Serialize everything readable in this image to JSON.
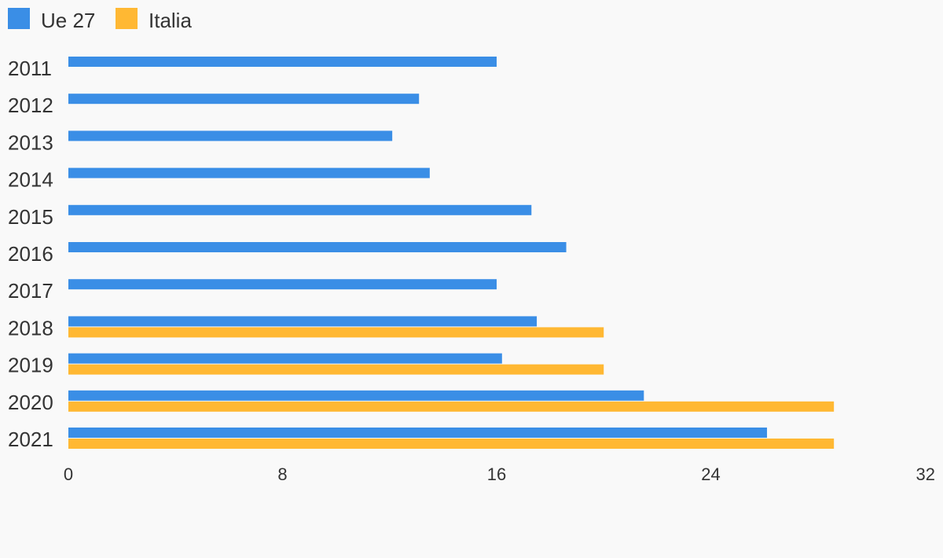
{
  "chart_data": {
    "type": "bar",
    "orientation": "horizontal",
    "categories": [
      "2011",
      "2012",
      "2013",
      "2014",
      "2015",
      "2016",
      "2017",
      "2018",
      "2019",
      "2020",
      "2021"
    ],
    "series": [
      {
        "name": "Ue 27",
        "color": "#3a8ee6",
        "values": [
          16,
          13.1,
          12.1,
          13.5,
          17.3,
          18.6,
          16,
          17.5,
          16.2,
          21.5,
          26.1
        ]
      },
      {
        "name": "Italia",
        "color": "#ffb833",
        "values": [
          null,
          null,
          null,
          null,
          null,
          null,
          null,
          20,
          20,
          28.6,
          28.6
        ]
      }
    ],
    "xlim": [
      0,
      32
    ],
    "xticks": [
      "0",
      "8",
      "16",
      "24",
      "32"
    ],
    "grid": false,
    "legend_position": "top-left"
  }
}
